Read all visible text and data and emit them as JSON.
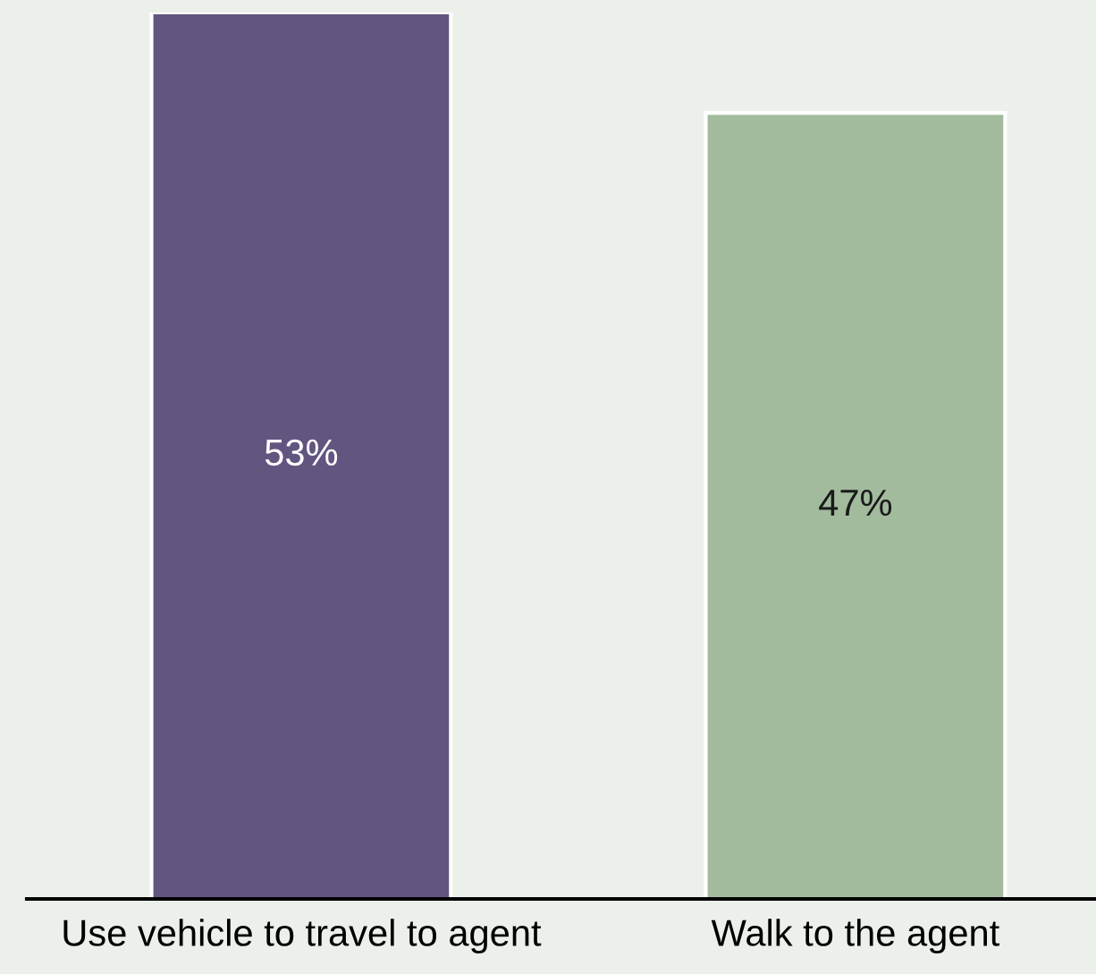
{
  "chart_data": {
    "type": "bar",
    "categories": [
      "Use vehicle to travel to agent",
      "Walk to the agent"
    ],
    "values": [
      53,
      47
    ],
    "colors": [
      "#62557f",
      "#a2bb9d"
    ],
    "value_labels": [
      "53%",
      "47%"
    ],
    "grid": false,
    "legend": false
  }
}
